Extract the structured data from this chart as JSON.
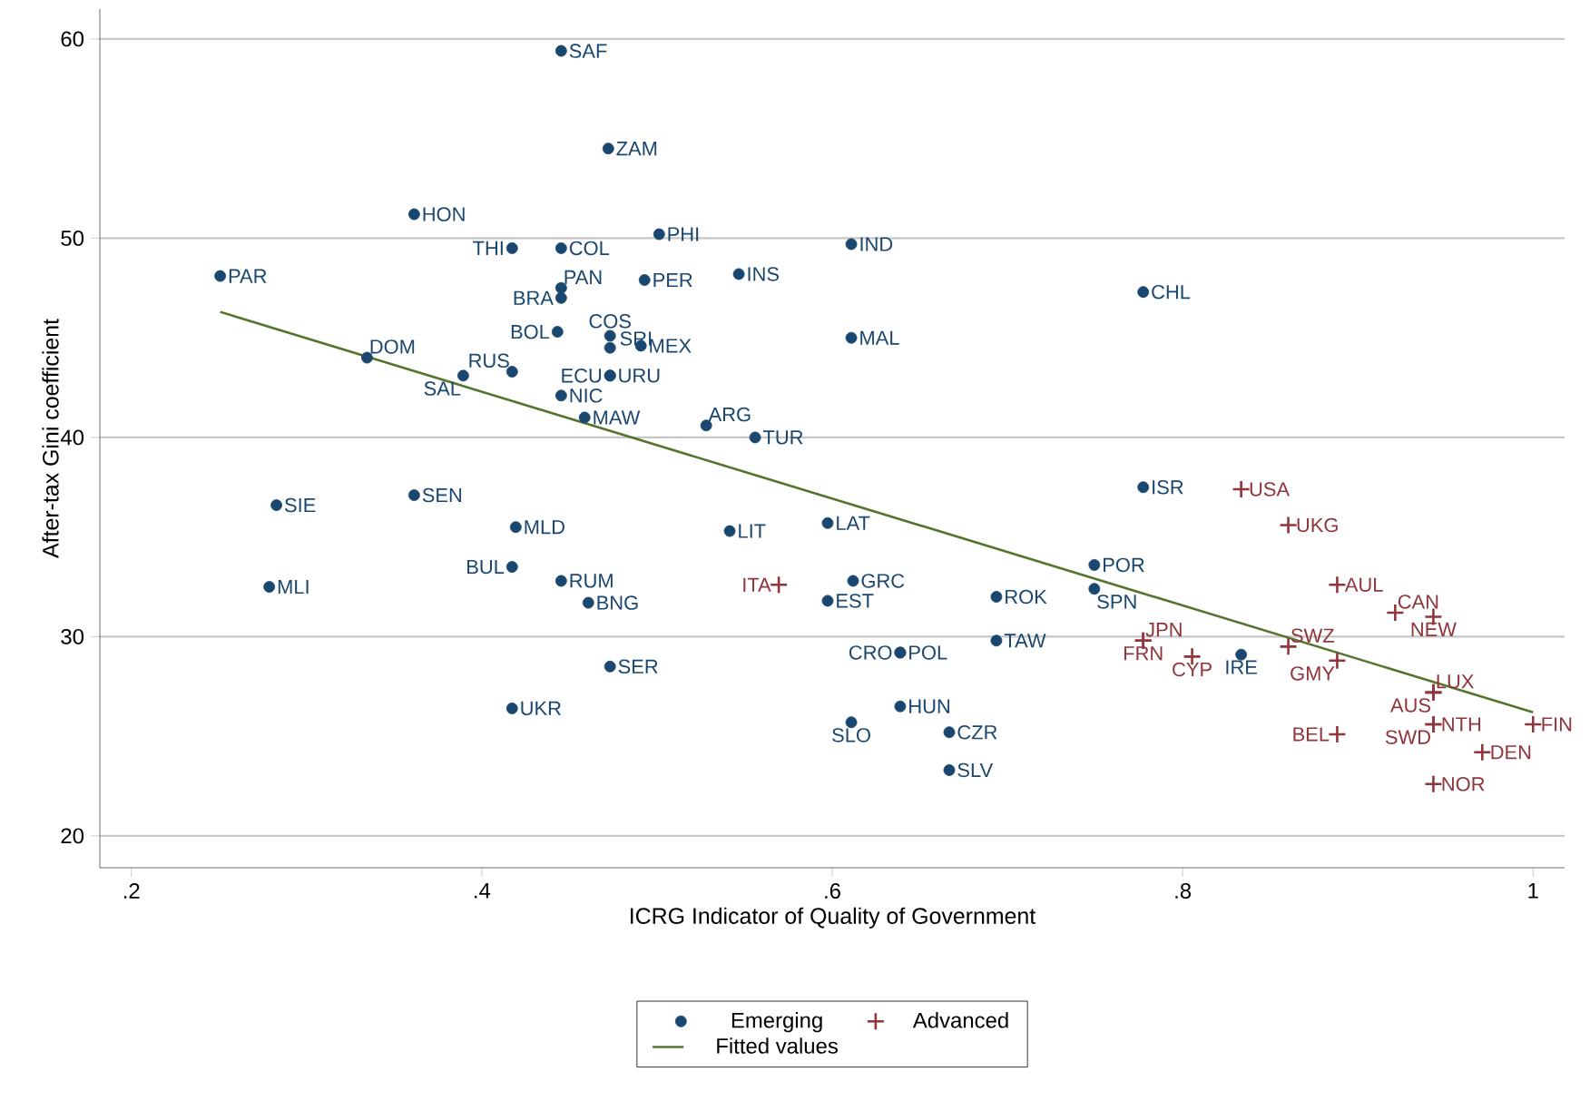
{
  "chart_data": {
    "type": "scatter",
    "xlabel": "ICRG Indicator of Quality of Government",
    "ylabel": "After-tax Gini coefficient",
    "xlim": [
      0.182,
      1.018
    ],
    "ylim": [
      18.4,
      61.5
    ],
    "xticks": [
      {
        "value": 0.2,
        "label": ".2"
      },
      {
        "value": 0.4,
        "label": ".4"
      },
      {
        "value": 0.6,
        "label": ".6"
      },
      {
        "value": 0.8,
        "label": ".8"
      },
      1
    ],
    "yticks": [
      20,
      30,
      40,
      50,
      60
    ],
    "grid": "y",
    "legend": "bottom",
    "series": [
      {
        "name": "Emerging",
        "color": "#1a476f",
        "marker": "circle",
        "x": [
          0.4453,
          0.4722,
          0.3614,
          0.4173,
          0.4453,
          0.5012,
          0.6109,
          0.2507,
          0.4453,
          0.4453,
          0.4929,
          0.5467,
          0.7775,
          0.6109,
          0.4432,
          0.4732,
          0.4732,
          0.4908,
          0.3345,
          0.3894,
          0.4173,
          0.4732,
          0.4732,
          0.4453,
          0.4587,
          0.5281,
          0.556,
          0.7775,
          0.2828,
          0.3614,
          0.4194,
          0.5415,
          0.5974,
          0.4173,
          0.4453,
          0.4608,
          0.2787,
          0.6119,
          0.5974,
          0.7496,
          0.7496,
          0.6937,
          0.6937,
          0.6388,
          0.6388,
          0.4732,
          0.4173,
          0.6388,
          0.6109,
          0.6668,
          0.6668,
          0.8334
        ],
        "values": [
          59.4,
          54.5,
          51.2,
          49.5,
          49.5,
          50.2,
          49.7,
          48.1,
          47.5,
          47.0,
          47.9,
          48.2,
          47.3,
          45.0,
          45.3,
          45.1,
          44.5,
          44.6,
          44.0,
          43.1,
          43.3,
          43.1,
          43.1,
          42.1,
          41.0,
          40.6,
          40.0,
          37.5,
          36.6,
          37.1,
          35.5,
          35.3,
          35.7,
          33.5,
          32.8,
          31.7,
          32.5,
          32.8,
          31.8,
          33.6,
          32.4,
          32.0,
          29.8,
          29.2,
          29.2,
          28.5,
          26.4,
          26.5,
          25.7,
          25.2,
          23.3,
          29.1
        ],
        "value_labels": [
          "SAF",
          "ZAM",
          "HON",
          "THI",
          "COL",
          "PHI",
          "IND",
          "PAR",
          "PAN",
          "BRA",
          "PER",
          "INS",
          "CHL",
          "MAL",
          "BOL",
          "COS",
          "SRI",
          "MEX",
          "DOM",
          "SAL",
          "RUS",
          "ECU",
          "URU",
          "NIC",
          "MAW",
          "ARG",
          "TUR",
          "ISR",
          "SIE",
          "SEN",
          "MLD",
          "LIT",
          "LAT",
          "BUL",
          "RUM",
          "BNG",
          "MLI",
          "GRC",
          "EST",
          "POR",
          "SPN",
          "ROK",
          "TAW",
          "POL",
          "CRO",
          "SER",
          "UKR",
          "HUN",
          "SLO",
          "CZR",
          "SLV",
          "IRE"
        ]
      },
      {
        "name": "Advanced",
        "color": "#90353b",
        "marker": "cross",
        "x": [
          0.5695,
          0.8334,
          0.8603,
          0.8882,
          0.9213,
          0.9431,
          0.7775,
          0.7775,
          0.8054,
          0.8603,
          0.8882,
          0.9431,
          0.9431,
          0.9431,
          0.9431,
          0.8882,
          1.0,
          0.971,
          0.9431
        ],
        "values": [
          32.6,
          37.4,
          35.6,
          32.6,
          31.2,
          31.0,
          29.8,
          29.8,
          29.0,
          29.5,
          28.8,
          27.2,
          27.2,
          25.6,
          25.6,
          25.1,
          25.6,
          24.2,
          22.6
        ],
        "value_labels": [
          "ITA",
          "USA",
          "UKG",
          "AUL",
          "CAN",
          "NEW",
          "JPN",
          "FRN",
          "CYP",
          "SWZ",
          "GMY",
          "AUS",
          "LUX",
          "NTH",
          "SWD",
          "BEL",
          "FIN",
          "DEN",
          "NOR"
        ]
      },
      {
        "name": "Fitted values",
        "type": "line",
        "color": "#55752f",
        "marker": "none",
        "line_style": "solid",
        "x": [
          0.2507,
          1.0
        ],
        "values": [
          46.3,
          26.2
        ]
      }
    ]
  }
}
